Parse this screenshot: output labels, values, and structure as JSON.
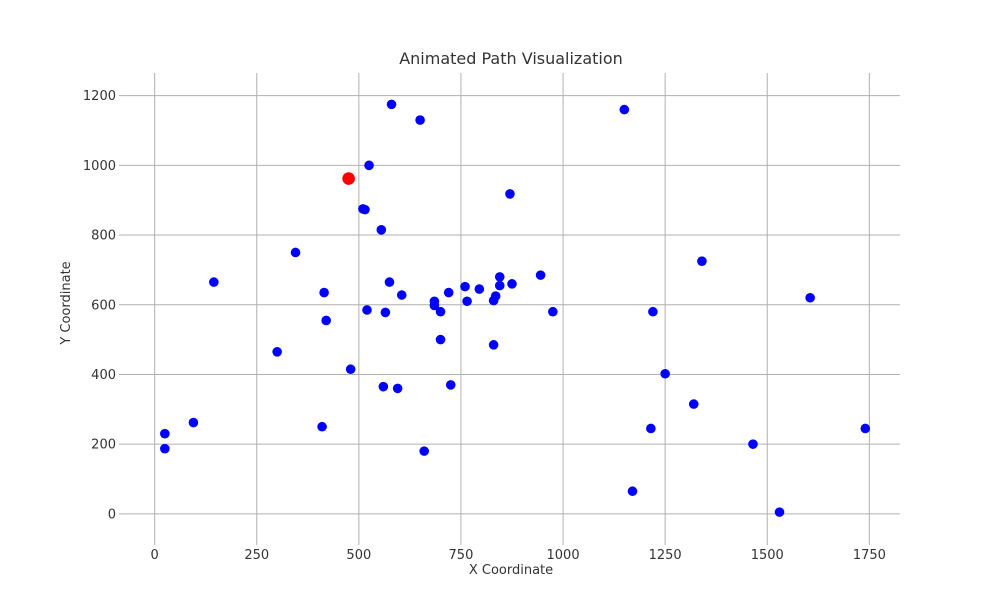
{
  "chart_data": {
    "type": "scatter",
    "title": "Animated Path Visualization",
    "xlabel": "X Coordinate",
    "ylabel": "Y Coordinate",
    "xlim": [
      -75,
      1825
    ],
    "ylim": [
      -75,
      1265
    ],
    "xticks": [
      0,
      250,
      500,
      750,
      1000,
      1250,
      1500,
      1750
    ],
    "yticks": [
      0,
      200,
      400,
      600,
      800,
      1000,
      1200
    ],
    "grid": true,
    "colors": {
      "points": "#0000ff",
      "highlight": "#ff0000",
      "grid": "#b0b0b0",
      "text": "#333333"
    },
    "points": [
      {
        "x": 25,
        "y": 230
      },
      {
        "x": 25,
        "y": 187
      },
      {
        "x": 95,
        "y": 262
      },
      {
        "x": 145,
        "y": 665
      },
      {
        "x": 300,
        "y": 465
      },
      {
        "x": 345,
        "y": 750
      },
      {
        "x": 410,
        "y": 250
      },
      {
        "x": 415,
        "y": 635
      },
      {
        "x": 420,
        "y": 555
      },
      {
        "x": 480,
        "y": 415
      },
      {
        "x": 510,
        "y": 875
      },
      {
        "x": 515,
        "y": 873
      },
      {
        "x": 520,
        "y": 585
      },
      {
        "x": 525,
        "y": 1000
      },
      {
        "x": 555,
        "y": 815
      },
      {
        "x": 560,
        "y": 365
      },
      {
        "x": 565,
        "y": 578
      },
      {
        "x": 575,
        "y": 665
      },
      {
        "x": 580,
        "y": 1175
      },
      {
        "x": 595,
        "y": 360
      },
      {
        "x": 605,
        "y": 628
      },
      {
        "x": 650,
        "y": 1130
      },
      {
        "x": 660,
        "y": 180
      },
      {
        "x": 685,
        "y": 610
      },
      {
        "x": 685,
        "y": 598
      },
      {
        "x": 700,
        "y": 580
      },
      {
        "x": 700,
        "y": 500
      },
      {
        "x": 720,
        "y": 635
      },
      {
        "x": 725,
        "y": 370
      },
      {
        "x": 760,
        "y": 652
      },
      {
        "x": 765,
        "y": 610
      },
      {
        "x": 795,
        "y": 645
      },
      {
        "x": 830,
        "y": 485
      },
      {
        "x": 830,
        "y": 612
      },
      {
        "x": 835,
        "y": 625
      },
      {
        "x": 845,
        "y": 655
      },
      {
        "x": 845,
        "y": 680
      },
      {
        "x": 870,
        "y": 918
      },
      {
        "x": 875,
        "y": 660
      },
      {
        "x": 945,
        "y": 685
      },
      {
        "x": 975,
        "y": 580
      },
      {
        "x": 1150,
        "y": 1160
      },
      {
        "x": 1170,
        "y": 65
      },
      {
        "x": 1215,
        "y": 245
      },
      {
        "x": 1220,
        "y": 580
      },
      {
        "x": 1250,
        "y": 402
      },
      {
        "x": 1320,
        "y": 315
      },
      {
        "x": 1340,
        "y": 725
      },
      {
        "x": 1465,
        "y": 200
      },
      {
        "x": 1530,
        "y": 5
      },
      {
        "x": 1605,
        "y": 620
      },
      {
        "x": 1740,
        "y": 245
      }
    ],
    "highlight_point": {
      "x": 475,
      "y": 962
    }
  }
}
